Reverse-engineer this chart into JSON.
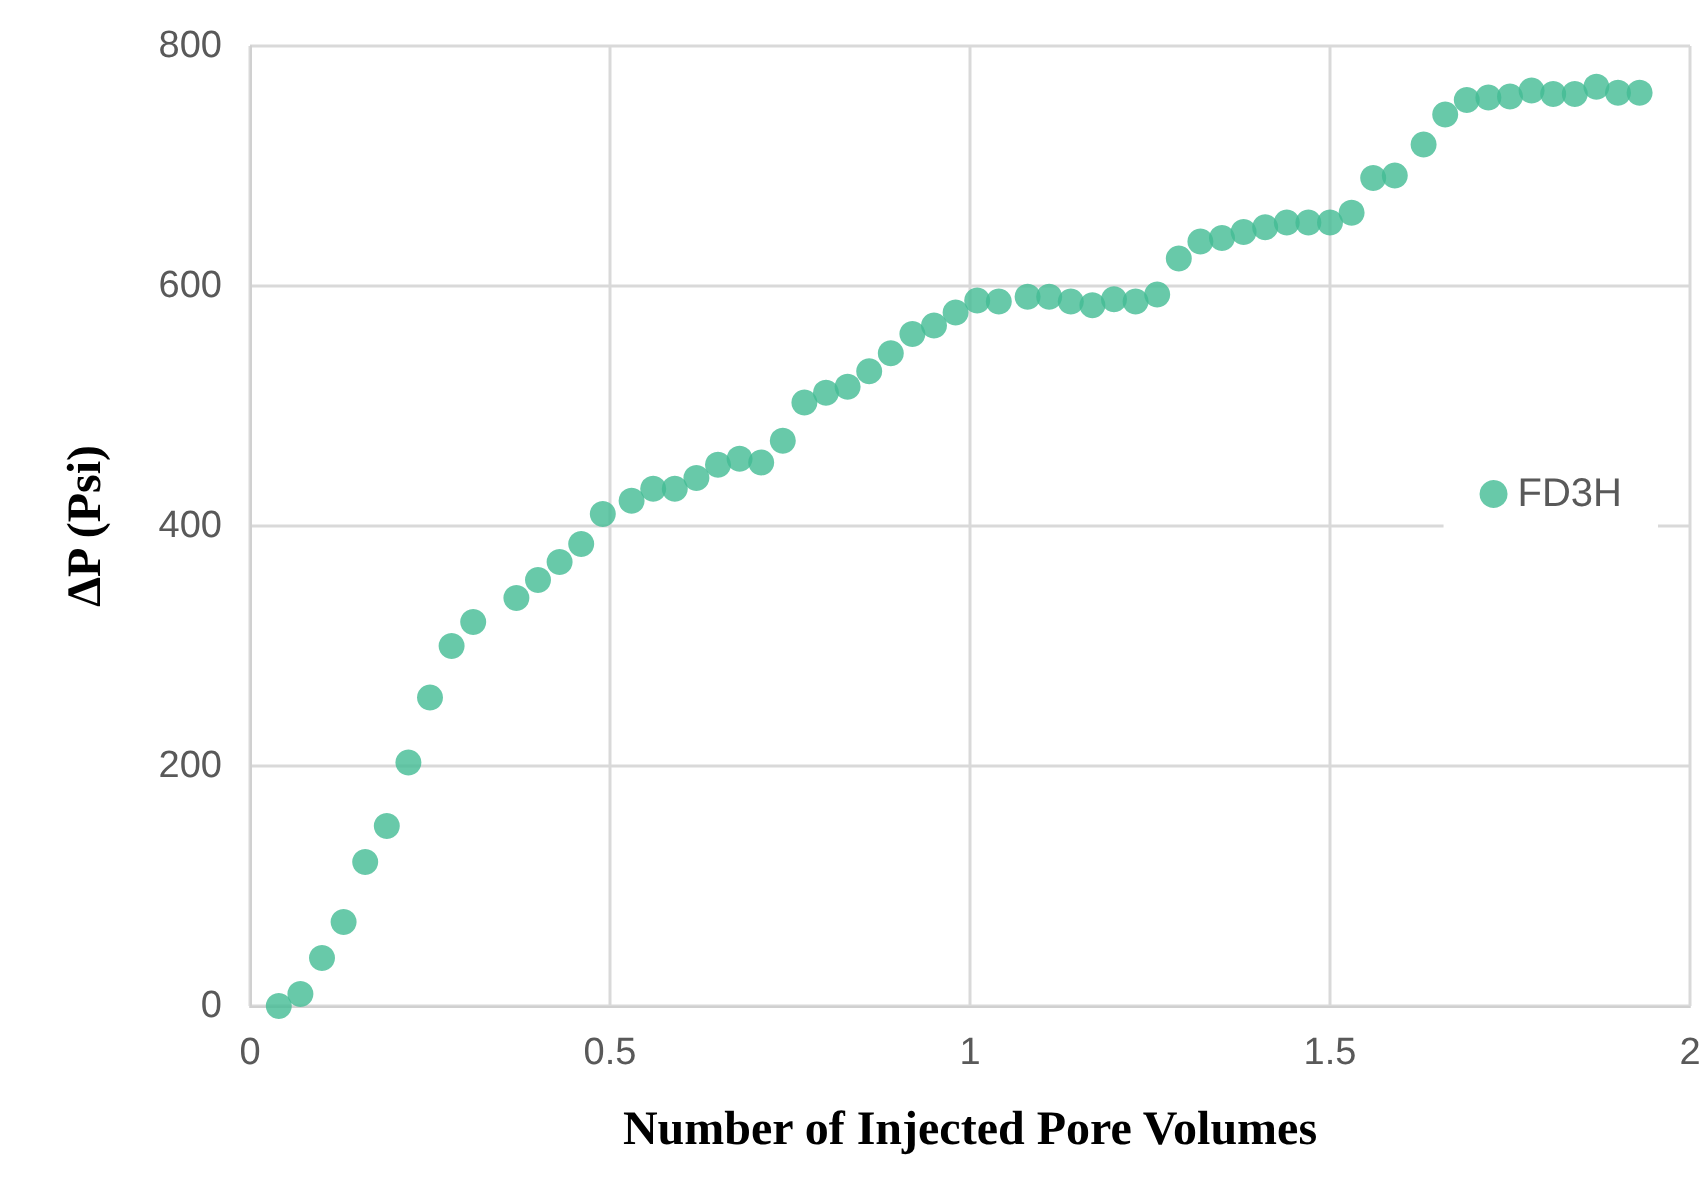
{
  "chart_data": {
    "type": "scatter",
    "xlabel": "Number of Injected Pore Volumes",
    "ylabel": "ΔP (Psi)",
    "xlim": [
      0,
      2
    ],
    "xticks": [
      0,
      0.5,
      1,
      1.5,
      2
    ],
    "ylim": [
      0,
      800
    ],
    "yticks": [
      0,
      200,
      400,
      600,
      800
    ],
    "grid": true,
    "legend": "right",
    "marker": "circle",
    "series": [
      {
        "name": "FD3H",
        "color": "#42bb94",
        "x": [
          0.04,
          0.07,
          0.1,
          0.13,
          0.16,
          0.19,
          0.22,
          0.25,
          0.28,
          0.31,
          0.37,
          0.4,
          0.43,
          0.46,
          0.49,
          0.53,
          0.56,
          0.59,
          0.62,
          0.65,
          0.68,
          0.71,
          0.74,
          0.77,
          0.8,
          0.83,
          0.86,
          0.89,
          0.92,
          0.95,
          0.98,
          1.01,
          1.04,
          1.08,
          1.11,
          1.14,
          1.17,
          1.2,
          1.23,
          1.26,
          1.29,
          1.32,
          1.35,
          1.38,
          1.41,
          1.44,
          1.47,
          1.5,
          1.53,
          1.56,
          1.59,
          1.63,
          1.66,
          1.69,
          1.72,
          1.75,
          1.78,
          1.81,
          1.84,
          1.87,
          1.9,
          1.93
        ],
        "values": [
          0,
          10,
          40,
          70,
          120,
          150,
          203,
          257,
          300,
          320,
          340,
          355,
          370,
          385,
          410,
          421,
          431,
          431,
          440,
          451,
          456,
          453,
          471,
          503,
          511,
          516,
          529,
          544,
          560,
          567,
          578,
          588,
          587,
          591,
          591,
          587,
          584,
          589,
          587,
          593,
          623,
          637,
          640,
          645,
          649,
          653,
          653,
          653,
          661,
          690,
          692,
          718,
          743,
          755,
          757,
          758,
          763,
          760,
          760,
          766,
          761,
          761
        ]
      }
    ]
  }
}
